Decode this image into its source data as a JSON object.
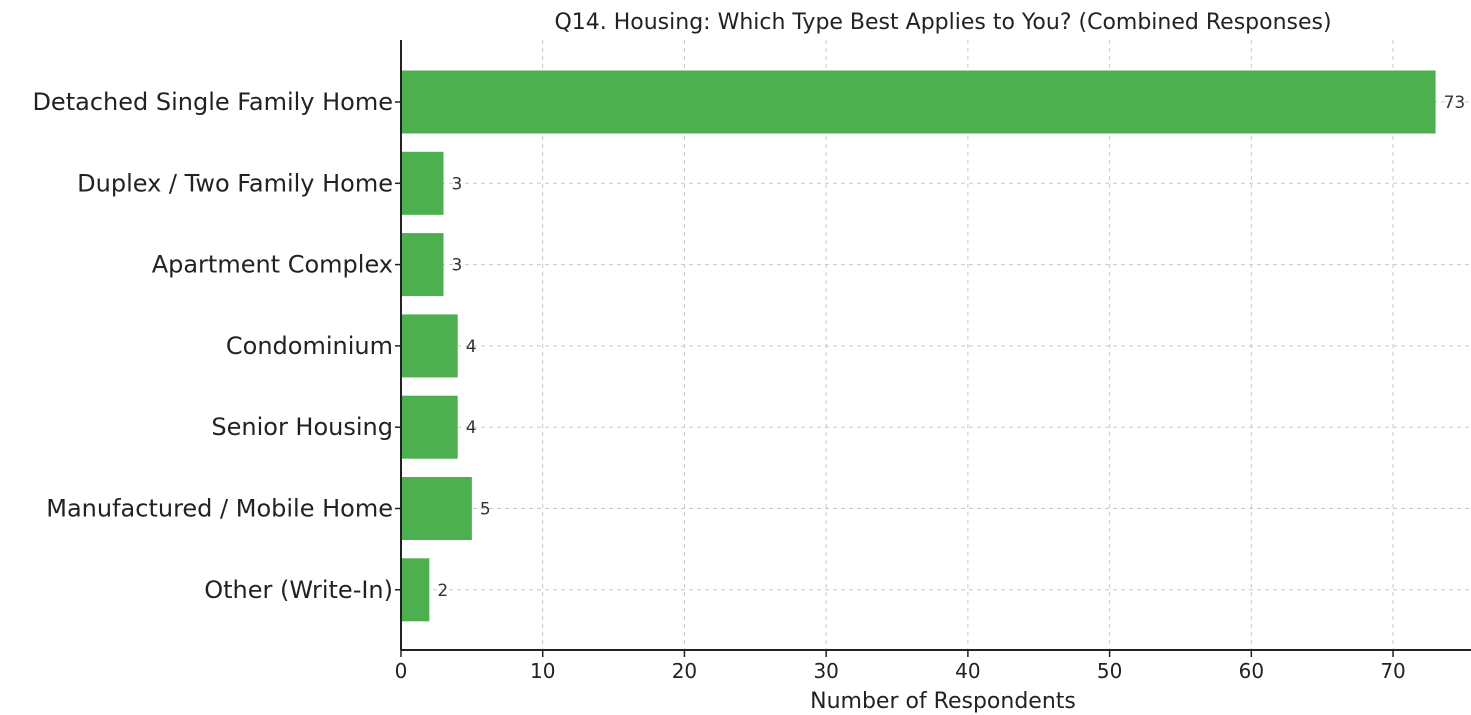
{
  "chart_data": {
    "type": "bar",
    "orientation": "horizontal",
    "title": "Q14. Housing: Which Type Best Applies to You? (Combined Responses)",
    "xlabel": "Number of Respondents",
    "ylabel": "",
    "categories": [
      "Detached Single Family Home",
      "Duplex / Two Family Home",
      "Apartment Complex",
      "Condominium",
      "Senior Housing",
      "Manufactured / Mobile Home",
      "Other (Write-In)"
    ],
    "values": [
      73,
      3,
      3,
      4,
      4,
      5,
      2
    ],
    "value_labels": [
      "73",
      "3",
      "3",
      "4",
      "4",
      "5",
      "2"
    ],
    "xlim": [
      0,
      75.5
    ],
    "xticks": [
      0,
      10,
      20,
      30,
      40,
      50,
      60,
      70
    ],
    "xtick_labels": [
      "0",
      "10",
      "20",
      "30",
      "40",
      "50",
      "60",
      "70"
    ],
    "grid": true,
    "bar_color": "#4caf50"
  }
}
